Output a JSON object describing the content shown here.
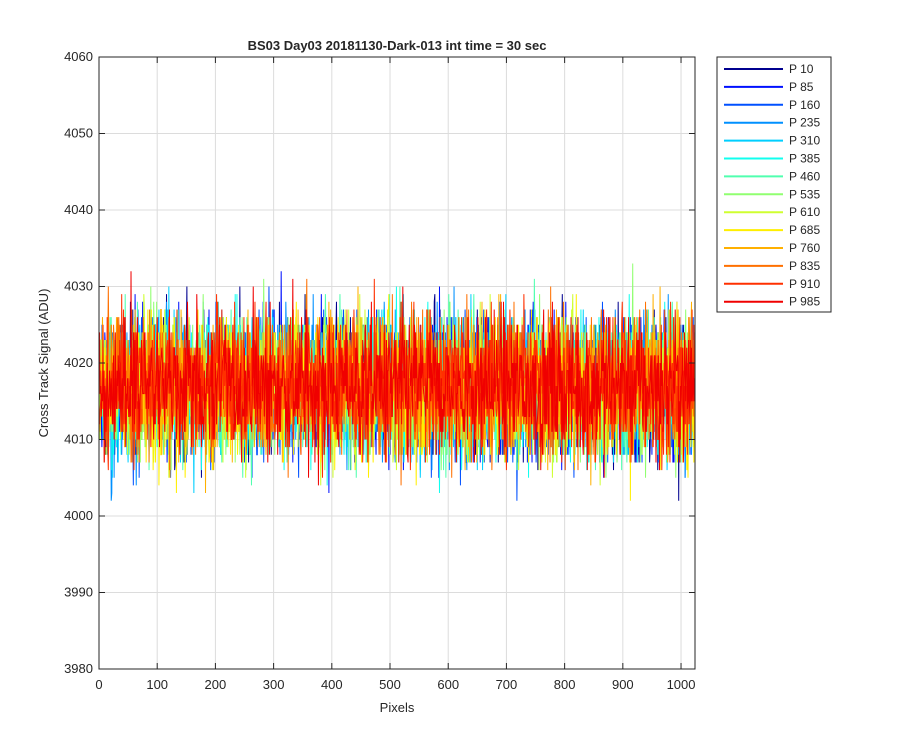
{
  "chart_data": {
    "type": "line",
    "title": "BS03 Day03 20181130-Dark-013 int time = 30 sec",
    "xlabel": "Pixels",
    "ylabel": "Cross Track Signal (ADU)",
    "xlim": [
      0,
      1024
    ],
    "ylim": [
      3980,
      4060
    ],
    "xticks": [
      0,
      100,
      200,
      300,
      400,
      500,
      600,
      700,
      800,
      900,
      1000
    ],
    "yticks": [
      3980,
      3990,
      4000,
      4010,
      4020,
      4030,
      4040,
      4050,
      4060
    ],
    "grid": true,
    "legend_location": "outside top-right",
    "series": [
      {
        "name": "P 10",
        "color": "#00008f",
        "mean": 4017,
        "spread": 9
      },
      {
        "name": "P 85",
        "color": "#0010ff",
        "mean": 4017,
        "spread": 9
      },
      {
        "name": "P 160",
        "color": "#0050ff",
        "mean": 4017,
        "spread": 9
      },
      {
        "name": "P 235",
        "color": "#0090ff",
        "mean": 4017,
        "spread": 9
      },
      {
        "name": "P 310",
        "color": "#00cfff",
        "mean": 4017,
        "spread": 9
      },
      {
        "name": "P 385",
        "color": "#10ffef",
        "mean": 4017,
        "spread": 9
      },
      {
        "name": "P 460",
        "color": "#50ffaf",
        "mean": 4017,
        "spread": 9
      },
      {
        "name": "P 535",
        "color": "#90ff70",
        "mean": 4017,
        "spread": 9
      },
      {
        "name": "P 610",
        "color": "#cfff30",
        "mean": 4017,
        "spread": 9
      },
      {
        "name": "P 685",
        "color": "#ffef00",
        "mean": 4017,
        "spread": 9
      },
      {
        "name": "P 760",
        "color": "#ffb000",
        "mean": 4017,
        "spread": 9
      },
      {
        "name": "P 835",
        "color": "#ff7000",
        "mean": 4017,
        "spread": 9
      },
      {
        "name": "P 910",
        "color": "#ff3000",
        "mean": 4017,
        "spread": 9
      },
      {
        "name": "P 985",
        "color": "#f00000",
        "mean": 4017,
        "spread": 9
      }
    ]
  }
}
